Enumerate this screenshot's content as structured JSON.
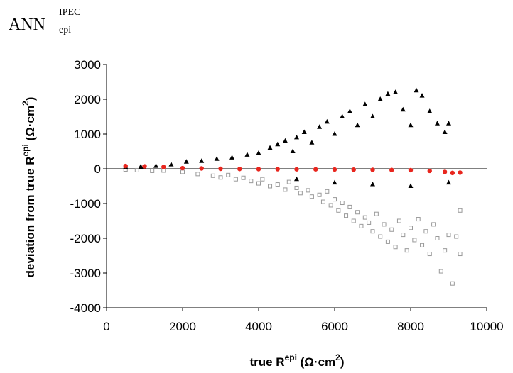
{
  "chart_data": {
    "type": "scatter",
    "title": {
      "main": "ANN",
      "subscript": "epi",
      "superscript": "IPEC"
    },
    "xlabel": {
      "pre": "true R",
      "sup": "epi",
      "unit_pre": " (Ω·cm",
      "unit_sup": "2",
      "unit_post": ")"
    },
    "ylabel": {
      "pre": "deviation from true R",
      "sup": "epi",
      "unit_pre": " (Ω·cm",
      "unit_sup": "2",
      "unit_post": ")"
    },
    "xlim": [
      0,
      10000
    ],
    "ylim": [
      -4000,
      3000
    ],
    "x_ticks": [
      0,
      2000,
      4000,
      6000,
      8000,
      10000
    ],
    "x_tick_labels": [
      "0",
      "2000",
      "4000",
      "6000",
      "8000",
      "10000"
    ],
    "y_ticks": [
      -4000,
      -3000,
      -2000,
      -1000,
      0,
      1000,
      2000,
      3000
    ],
    "y_tick_labels": [
      "-4000",
      "-3000",
      "-2000",
      "-1000",
      "0",
      "1000",
      "2000",
      "3000"
    ],
    "grid": false,
    "legend": "none",
    "series": [
      {
        "marker": "square-open",
        "color": "#999999",
        "points": [
          [
            500,
            -20
          ],
          [
            800,
            -40
          ],
          [
            1200,
            -60
          ],
          [
            1500,
            -50
          ],
          [
            2000,
            -90
          ],
          [
            2400,
            -150
          ],
          [
            2800,
            -200
          ],
          [
            3000,
            -250
          ],
          [
            3200,
            -180
          ],
          [
            3400,
            -300
          ],
          [
            3600,
            -260
          ],
          [
            3800,
            -350
          ],
          [
            4000,
            -420
          ],
          [
            4100,
            -300
          ],
          [
            4300,
            -500
          ],
          [
            4500,
            -450
          ],
          [
            4700,
            -600
          ],
          [
            4800,
            -380
          ],
          [
            5000,
            -550
          ],
          [
            5100,
            -700
          ],
          [
            5300,
            -620
          ],
          [
            5400,
            -800
          ],
          [
            5600,
            -750
          ],
          [
            5700,
            -950
          ],
          [
            5800,
            -650
          ],
          [
            5900,
            -1050
          ],
          [
            6000,
            -880
          ],
          [
            6100,
            -1200
          ],
          [
            6200,
            -980
          ],
          [
            6300,
            -1350
          ],
          [
            6400,
            -1100
          ],
          [
            6500,
            -1500
          ],
          [
            6600,
            -1250
          ],
          [
            6700,
            -1650
          ],
          [
            6800,
            -1400
          ],
          [
            6900,
            -1550
          ],
          [
            7000,
            -1800
          ],
          [
            7100,
            -1300
          ],
          [
            7200,
            -1950
          ],
          [
            7300,
            -1600
          ],
          [
            7400,
            -2100
          ],
          [
            7500,
            -1750
          ],
          [
            7600,
            -2250
          ],
          [
            7700,
            -1500
          ],
          [
            7800,
            -1900
          ],
          [
            7900,
            -2350
          ],
          [
            8000,
            -1700
          ],
          [
            8100,
            -2050
          ],
          [
            8200,
            -1450
          ],
          [
            8300,
            -2200
          ],
          [
            8400,
            -1800
          ],
          [
            8500,
            -2450
          ],
          [
            8600,
            -1600
          ],
          [
            8700,
            -2000
          ],
          [
            8800,
            -2950
          ],
          [
            8900,
            -2350
          ],
          [
            9000,
            -1900
          ],
          [
            9100,
            -3300
          ],
          [
            9200,
            -1950
          ],
          [
            9300,
            -2450
          ],
          [
            9300,
            -1200
          ]
        ]
      },
      {
        "marker": "triangle-filled",
        "color": "#000000",
        "points": [
          [
            500,
            50
          ],
          [
            900,
            60
          ],
          [
            1300,
            80
          ],
          [
            1700,
            120
          ],
          [
            2100,
            200
          ],
          [
            2500,
            220
          ],
          [
            2900,
            280
          ],
          [
            3300,
            320
          ],
          [
            3700,
            400
          ],
          [
            4000,
            450
          ],
          [
            4300,
            600
          ],
          [
            4500,
            700
          ],
          [
            4700,
            800
          ],
          [
            4900,
            500
          ],
          [
            5000,
            900
          ],
          [
            5200,
            1050
          ],
          [
            5400,
            750
          ],
          [
            5600,
            1200
          ],
          [
            5800,
            1350
          ],
          [
            6000,
            1000
          ],
          [
            6200,
            1500
          ],
          [
            6400,
            1650
          ],
          [
            6600,
            1250
          ],
          [
            6800,
            1850
          ],
          [
            7000,
            1500
          ],
          [
            7200,
            2000
          ],
          [
            7400,
            2150
          ],
          [
            7600,
            2200
          ],
          [
            7800,
            1700
          ],
          [
            8000,
            1250
          ],
          [
            8150,
            2250
          ],
          [
            8300,
            2100
          ],
          [
            8500,
            1650
          ],
          [
            8700,
            1300
          ],
          [
            8900,
            1050
          ],
          [
            9000,
            1300
          ],
          [
            5000,
            -300
          ],
          [
            6000,
            -400
          ],
          [
            7000,
            -450
          ],
          [
            8000,
            -500
          ],
          [
            9000,
            -400
          ]
        ]
      },
      {
        "marker": "circle-filled",
        "color": "#e8261e",
        "points": [
          [
            500,
            80
          ],
          [
            1000,
            70
          ],
          [
            1500,
            50
          ],
          [
            2000,
            20
          ],
          [
            2500,
            10
          ],
          [
            3000,
            0
          ],
          [
            3500,
            -5
          ],
          [
            4000,
            -10
          ],
          [
            4500,
            -10
          ],
          [
            5000,
            -15
          ],
          [
            5500,
            -15
          ],
          [
            6000,
            -20
          ],
          [
            6500,
            -25
          ],
          [
            7000,
            -30
          ],
          [
            7500,
            -35
          ],
          [
            8000,
            -40
          ],
          [
            8500,
            -60
          ],
          [
            8900,
            -90
          ],
          [
            9100,
            -120
          ],
          [
            9300,
            -110
          ]
        ]
      }
    ]
  }
}
